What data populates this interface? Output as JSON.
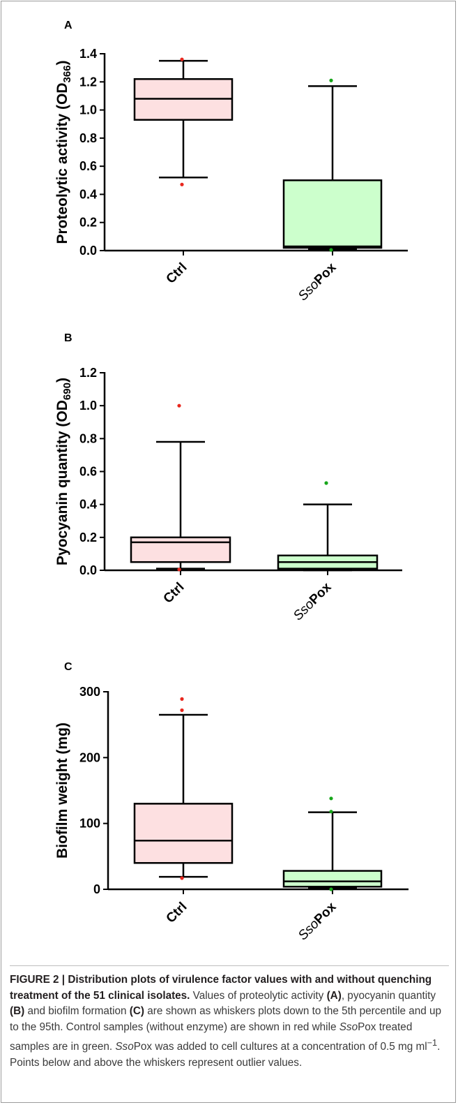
{
  "caption": {
    "figure_label": "FIGURE 2 | ",
    "title": "Distribution plots of virulence factor values with and without quenching treatment of the 51 clinical isolates.",
    "seg1": " Values of proteolytic activity ",
    "seg2": "(A)",
    "seg3": ", pyocyanin quantity ",
    "seg4": "(B)",
    "seg5": " and biofilm formation ",
    "seg6": "(C)",
    "seg7": " are shown as whiskers plots down to the 5th percentile and up to the 95th. Control samples (without enzyme) are shown in red while ",
    "seg8": "Sso",
    "seg9": "Pox treated samples are in green. ",
    "seg10": "Sso",
    "seg11": "Pox was added to cell cultures at a concentration of 0.5 mg ml",
    "seg12": "−1",
    "seg13": ". Points below and above the whiskers represent outlier values."
  },
  "colors": {
    "ctrl_fill": "#fde0e1",
    "ssopox_fill": "#ccffcc",
    "ctrl_point": "#e8271e",
    "ssopox_point": "#17a61a"
  },
  "chart_data": [
    {
      "type": "box",
      "panel": "A",
      "ylabel": "Proteolytic activity (OD",
      "ylabel_sub": "366",
      "ylabel_end": ")",
      "ylim": [
        0,
        1.4
      ],
      "yticks": [
        0.0,
        0.2,
        0.4,
        0.6,
        0.8,
        1.0,
        1.2,
        1.4
      ],
      "categories": [
        "Ctrl",
        "SsoPox"
      ],
      "boxes": [
        {
          "name": "Ctrl",
          "whisker_low": 0.52,
          "q1": 0.93,
          "median": 1.08,
          "q3": 1.22,
          "whisker_high": 1.35,
          "outliers": [
            1.36,
            0.47
          ]
        },
        {
          "name": "SsoPox",
          "whisker_low": 0.01,
          "q1": 0.02,
          "median": 0.03,
          "q3": 0.5,
          "whisker_high": 1.17,
          "outliers": [
            1.21,
            0.005
          ]
        }
      ]
    },
    {
      "type": "box",
      "panel": "B",
      "ylabel": "Pyocyanin quantity (OD",
      "ylabel_sub": "690",
      "ylabel_end": ")",
      "ylim": [
        0,
        1.2
      ],
      "yticks": [
        0.0,
        0.2,
        0.4,
        0.6,
        0.8,
        1.0,
        1.2
      ],
      "categories": [
        "Ctrl",
        "SsoPox"
      ],
      "boxes": [
        {
          "name": "Ctrl",
          "whisker_low": 0.01,
          "q1": 0.05,
          "median": 0.17,
          "q3": 0.2,
          "whisker_high": 0.78,
          "outliers": [
            1.0,
            0.005
          ]
        },
        {
          "name": "SsoPox",
          "whisker_low": 0.0,
          "q1": 0.01,
          "median": 0.05,
          "q3": 0.09,
          "whisker_high": 0.4,
          "outliers": [
            0.53
          ]
        }
      ]
    },
    {
      "type": "box",
      "panel": "C",
      "ylabel": "Biofilm weight (mg)",
      "ylabel_sub": "",
      "ylabel_end": "",
      "ylim": [
        0,
        300
      ],
      "yticks": [
        0,
        100,
        200,
        300
      ],
      "categories": [
        "Ctrl",
        "SsoPox"
      ],
      "boxes": [
        {
          "name": "Ctrl",
          "whisker_low": 19,
          "q1": 40,
          "median": 74,
          "q3": 130,
          "whisker_high": 265,
          "outliers": [
            289,
            272,
            17
          ]
        },
        {
          "name": "SsoPox",
          "whisker_low": 2,
          "q1": 4,
          "median": 12,
          "q3": 28,
          "whisker_high": 117,
          "outliers": [
            138,
            118,
            0
          ]
        }
      ]
    }
  ]
}
